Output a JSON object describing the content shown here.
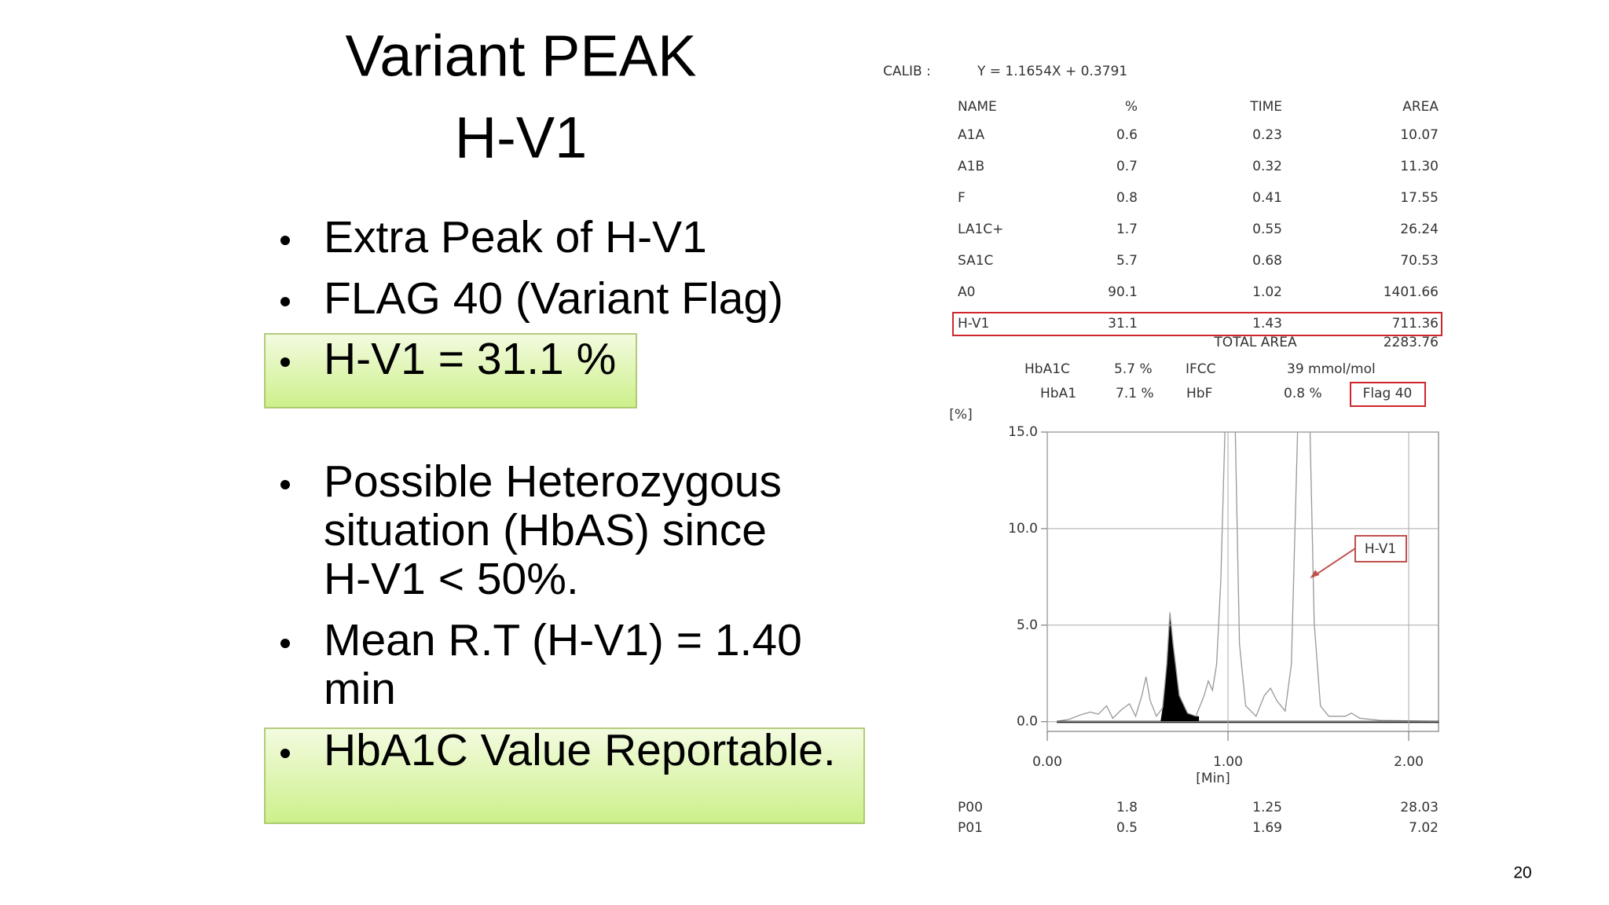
{
  "slide": {
    "title": [
      "Variant PEAK",
      "H-V1"
    ],
    "bullets": [
      [
        "Extra Peak of H-V1"
      ],
      [
        "FLAG 40 (Variant Flag)"
      ],
      [
        "H-V1  = 31.1 %"
      ],
      [
        "Possible Heterozygous",
        "situation (HbAS) since",
        "H-V1 < 50%."
      ],
      [
        "Mean R.T (H-V1) = 1.40",
        "min"
      ],
      [
        "HbA1C Value Reportable."
      ]
    ],
    "page_number": "20"
  },
  "report": {
    "calib_label": "CALIB :",
    "calib_equation": "Y = 1.1654X + 0.3791",
    "table": {
      "header": [
        "NAME",
        "%",
        "TIME",
        "AREA"
      ],
      "rows": [
        [
          "A1A",
          "0.6",
          "0.23",
          "10.07"
        ],
        [
          "A1B",
          "0.7",
          "0.32",
          "11.30"
        ],
        [
          "F",
          "0.8",
          "0.41",
          "17.55"
        ],
        [
          "LA1C+",
          "1.7",
          "0.55",
          "26.24"
        ],
        [
          "SA1C",
          "5.7",
          "0.68",
          "70.53"
        ],
        [
          "A0",
          "90.1",
          "1.02",
          "1401.66"
        ],
        [
          "H-V1",
          "31.1",
          "1.43",
          "711.36"
        ]
      ]
    },
    "total_area_label": "TOTAL AREA",
    "total_area": "2283.76",
    "summary": [
      [
        "HbA1C",
        "5.7 %",
        "IFCC",
        "39 mmol/mol"
      ],
      [
        "HbA1",
        "7.1 %",
        "HbF",
        "0.8 %",
        "Flag  40"
      ]
    ],
    "peaks": [
      [
        "P00",
        "1.8",
        "1.25",
        "28.03"
      ],
      [
        "P01",
        "0.5",
        "1.69",
        "7.02"
      ]
    ]
  },
  "chart_data": {
    "type": "line",
    "y_label": "[%]",
    "x_label": "[Min]",
    "annotation": "H-V1",
    "xlim": [
      0,
      2.165
    ],
    "xticks": [
      {
        "value": 0,
        "label": "0.00"
      },
      {
        "value": 1,
        "label": "1.00"
      },
      {
        "value": 2,
        "label": "2.00"
      }
    ],
    "ylim": [
      -0.5,
      15
    ],
    "yticks": [
      {
        "value": 0,
        "label": "0.0"
      },
      {
        "value": 5,
        "label": "5.0"
      },
      {
        "value": 10,
        "label": "10.0"
      },
      {
        "value": 15,
        "label": "15.0"
      }
    ],
    "grid": true
  }
}
